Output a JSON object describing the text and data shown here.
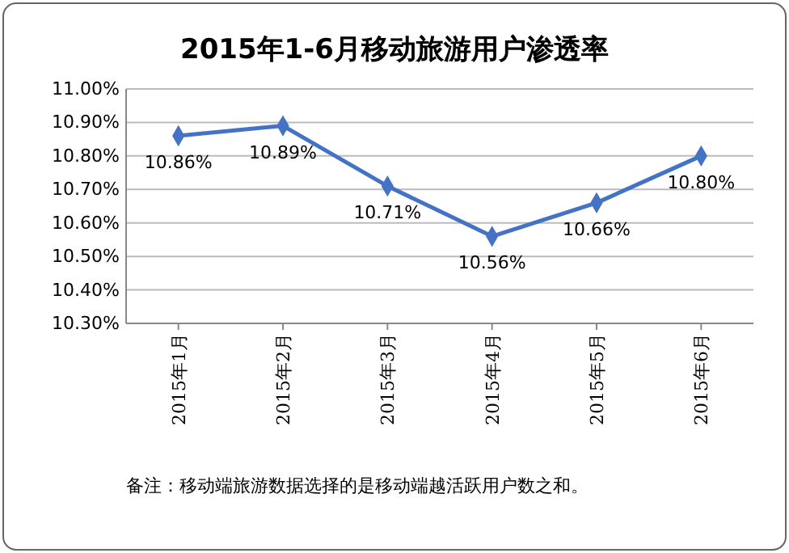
{
  "chart_data": {
    "type": "line",
    "title": "2015年1-6月移动旅游用户渗透率",
    "categories": [
      "2015年1月",
      "2015年2月",
      "2015年3月",
      "2015年4月",
      "2015年5月",
      "2015年6月"
    ],
    "series": [
      {
        "color": "#4472c4",
        "values": [
          10.86,
          10.89,
          10.71,
          10.56,
          10.66,
          10.8
        ],
        "value_labels": [
          "10.86%",
          "10.89%",
          "10.71%",
          "10.56%",
          "10.66%",
          "10.80%"
        ]
      }
    ],
    "ylim": [
      10.3,
      11.0
    ],
    "yticks": [
      {
        "value": 10.3,
        "label": "10.30%"
      },
      {
        "value": 10.4,
        "label": "10.40%"
      },
      {
        "value": 10.5,
        "label": "10.50%"
      },
      {
        "value": 10.6,
        "label": "10.60%"
      },
      {
        "value": 10.7,
        "label": "10.70%"
      },
      {
        "value": 10.8,
        "label": "10.80%"
      },
      {
        "value": 10.9,
        "label": "10.90%"
      },
      {
        "value": 11.0,
        "label": "11.00%"
      }
    ],
    "grid": "y",
    "marker": "diamond",
    "line_style": "solid",
    "annotations": [
      "备注：移动端旅游数据选择的是移动端越活跃用户数之和。"
    ]
  }
}
